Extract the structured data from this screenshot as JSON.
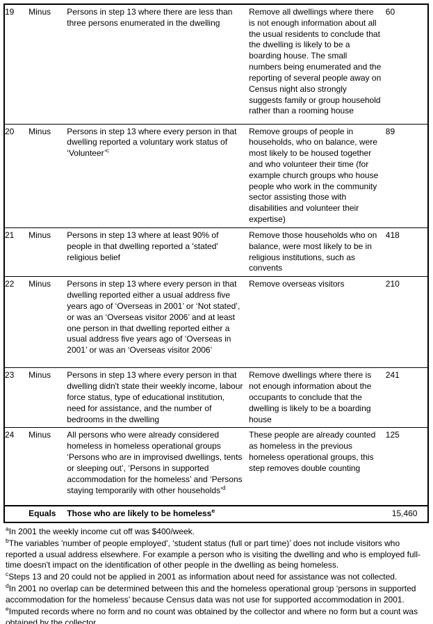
{
  "table": {
    "rows": [
      {
        "step": "19",
        "op": "Minus",
        "desc": "Persons in step 13 where there are less than three persons enumerated in the dwelling",
        "expl": "Remove all dwellings where there is not enough information about all the usual residents to conclude that the dwelling is likely to be a boarding house. The small numbers being enumerated and the reporting of several people away on Census night also strongly suggests family or group household rather than a rooming house",
        "value": "60"
      },
      {
        "step": "20",
        "op": "Minus",
        "desc": "Persons in step 13 where every person in that dwelling reported a voluntary work status of ‘Volunteer’",
        "desc_sup": "c",
        "expl": "Remove groups of people in households, who on balance, were most likely to be housed together and who volunteer their time (for example church groups who house people who work in the community sector assisting those with disabilities and volunteer their expertise)",
        "value": "89"
      },
      {
        "step": "21",
        "op": "Minus",
        "desc": "Persons in step 13 where at least 90% of people in that dwelling reported a 'stated' religious belief",
        "expl": "Remove those households who on balance, were most likely to be in religious institutions, such as convents",
        "value": "418"
      },
      {
        "step": "22",
        "op": "Minus",
        "desc": "Persons in step 13 where every person in that dwelling reported either a usual address five years ago of ‘Overseas in 2001’ or ‘Not stated’, or was an ‘Overseas visitor 2006’ and at least one person in that dwelling reported either a usual address five years ago of ‘Overseas in 2001’ or was an ‘Overseas visitor 2006’",
        "expl": "Remove overseas visitors",
        "value": "210"
      },
      {
        "step": "23",
        "op": "Minus",
        "desc": "Persons in step 13 where every person in that dwelling didn't state their weekly income, labour force status, type of educational institution, need for assistance, and the number of bedrooms in the dwelling",
        "expl": "Remove dwellings where there is not enough information about the occupants to conclude that the dwelling is likely to be a boarding house",
        "value": "241"
      },
      {
        "step": "24",
        "op": "Minus",
        "desc": "All persons who were already considered homeless in homeless operational groups ‘Persons who are in improvised dwellings, tents or sleeping out’, ‘Persons in supported accommodation for the homeless’ and ‘Persons staying temporarily with other households’",
        "desc_sup": "d",
        "expl": "These people are already counted as homeless in the previous homeless operational groups, this step removes double counting",
        "value": "125"
      }
    ],
    "total_row": {
      "op": "Equals",
      "label": "Those who are likely to be homeless",
      "label_sup": "e",
      "value": "15,460"
    }
  },
  "footnotes": [
    {
      "marker": "a",
      "text": "In 2001 the weekly income cut off was $400/week."
    },
    {
      "marker": "b",
      "text": "The variables 'number of people employed', ‘student status (full or part time)’ does not include visitors who reported a usual address elsewhere. For example a person who is visiting the dwelling and who is employed full-time doesn't impact on the identification of other people in the dwelling as being homeless."
    },
    {
      "marker": "c",
      "text": "Steps 13 and 20 could not be applied in 2001 as information about need for assistance was not collected."
    },
    {
      "marker": "d",
      "text": "In 2001 no overlap can be determined between this and the homeless operational group ‘persons in supported accommodation for the homeless’ because Census data was not use for supported accommodation in 2001."
    },
    {
      "marker": "e",
      "text": "Imputed records where no form and no count was obtained by the collector and where no form but a count was obtained by the collector."
    }
  ]
}
